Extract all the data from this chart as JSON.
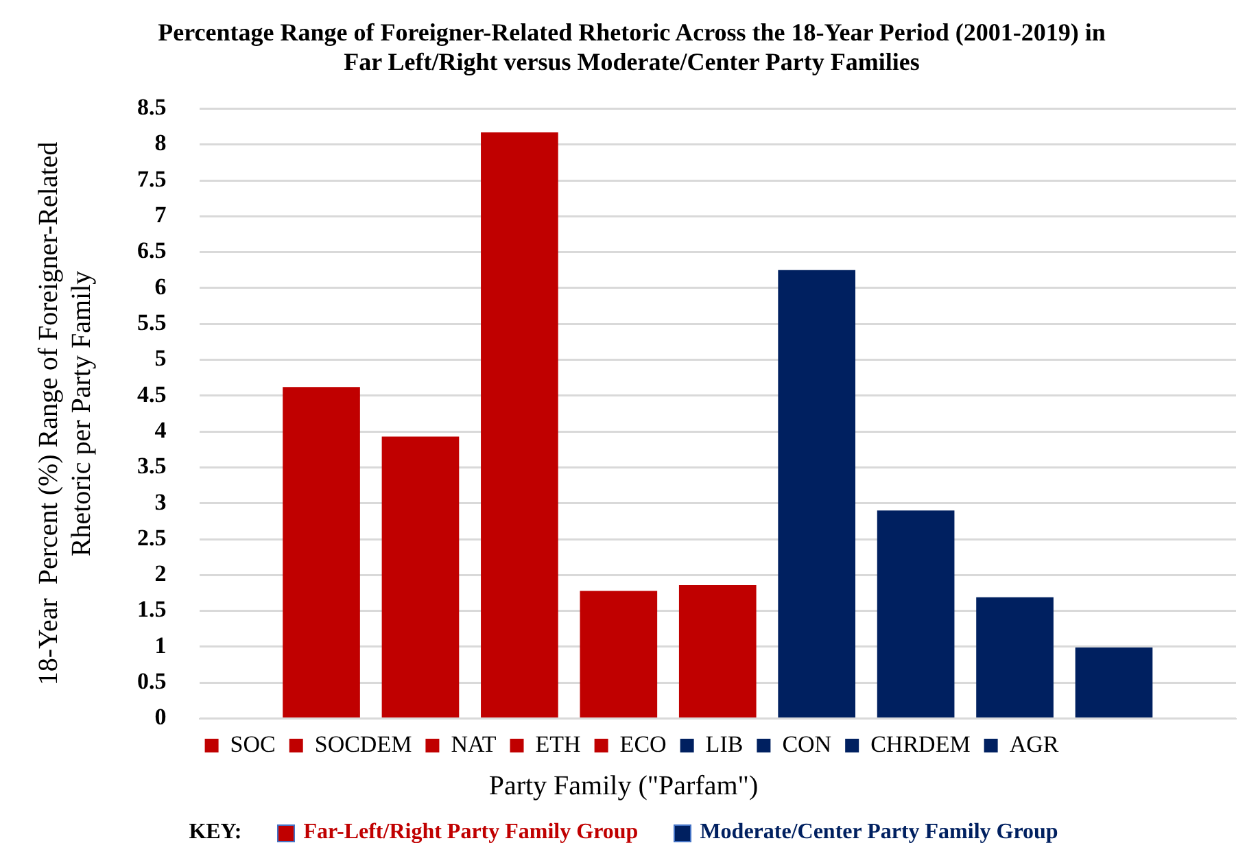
{
  "chart_data": {
    "type": "bar",
    "title": "Percentage Range of Foreigner-Related Rhetoric Across the 18-Year Period (2001-2019) in Far Left/Right versus Moderate/Center Party Families",
    "xlabel": "Party Family (\"Parfam\")",
    "ylabel": "18-Year  Percent (%) Range of Foreigner-Related Rhetoric per Party Family",
    "categories": [
      null
    ],
    "series": [
      {
        "name": "SOC",
        "color": "#c00000",
        "values": [
          4.62
        ]
      },
      {
        "name": "SOCDEM",
        "color": "#c00000",
        "values": [
          3.93
        ]
      },
      {
        "name": "NAT",
        "color": "#c00000",
        "values": [
          8.17
        ]
      },
      {
        "name": "ETH",
        "color": "#c00000",
        "values": [
          1.78
        ]
      },
      {
        "name": "ECO",
        "color": "#c00000",
        "values": [
          1.86
        ]
      },
      {
        "name": "LIB",
        "color": "#002060",
        "values": [
          6.25
        ]
      },
      {
        "name": "CON",
        "color": "#002060",
        "values": [
          2.9
        ]
      },
      {
        "name": "CHRDEM",
        "color": "#002060",
        "values": [
          1.69
        ]
      },
      {
        "name": "AGR",
        "color": "#002060",
        "values": [
          0.99
        ]
      }
    ],
    "ylim": [
      0,
      8.5
    ],
    "yticks": [
      0,
      0.5,
      1,
      1.5,
      2,
      2.5,
      3,
      3.5,
      4,
      4.5,
      5,
      5.5,
      6,
      6.5,
      7,
      7.5,
      8,
      8.5
    ],
    "grid": "y",
    "legend": "bottom",
    "annotations": [
      "KEY:",
      "Far-Left/Right Party Family Group",
      "Moderate/Center Party Family Group"
    ]
  }
}
